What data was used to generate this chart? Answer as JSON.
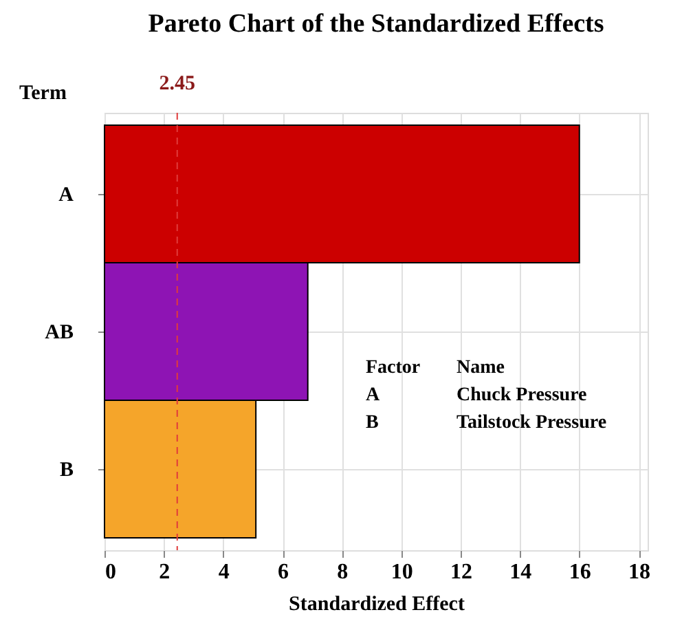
{
  "chart_data": {
    "type": "bar",
    "orientation": "horizontal",
    "title": "Pareto Chart of the Standardized Effects",
    "xlabel": "Standardized Effect",
    "ylabel": "Term",
    "categories": [
      "A",
      "AB",
      "B"
    ],
    "values": [
      16.0,
      6.85,
      5.1
    ],
    "colors": [
      "#cc0000",
      "#8e14b4",
      "#f5a52a"
    ],
    "xlim": [
      0,
      18.3
    ],
    "xticks": [
      0,
      2,
      4,
      6,
      8,
      10,
      12,
      14,
      16,
      18
    ],
    "grid": true,
    "ref_lines": [
      {
        "axis": "x",
        "value": 2.45,
        "label": "2.45",
        "color": "#e03c3c",
        "line_style": "dashed"
      }
    ],
    "annotations": [
      "Factor",
      "Name",
      "A",
      "Chuck Pressure",
      "B",
      "Tailstock Pressure"
    ]
  }
}
